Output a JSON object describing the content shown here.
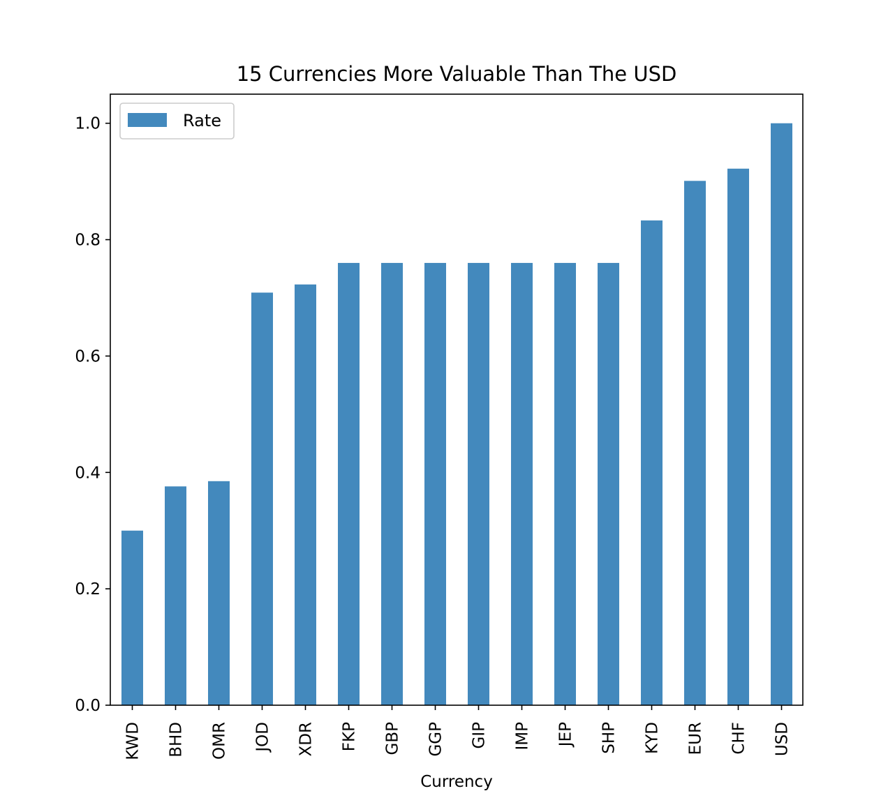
{
  "chart_data": {
    "type": "bar",
    "title": "15 Currencies More Valuable Than The USD",
    "xlabel": "Currency",
    "ylabel": "",
    "categories": [
      "KWD",
      "BHD",
      "OMR",
      "JOD",
      "XDR",
      "FKP",
      "GBP",
      "GGP",
      "GIP",
      "IMP",
      "JEP",
      "SHP",
      "KYD",
      "EUR",
      "CHF",
      "USD"
    ],
    "series": [
      {
        "name": "Rate",
        "values": [
          0.3,
          0.376,
          0.385,
          0.709,
          0.723,
          0.76,
          0.76,
          0.76,
          0.76,
          0.76,
          0.76,
          0.76,
          0.833,
          0.901,
          0.922,
          1.0
        ],
        "color": "#4389bd"
      }
    ],
    "ylim": [
      0,
      1.05
    ],
    "yticks": [
      "0.0",
      "0.2",
      "0.4",
      "0.6",
      "0.8",
      "1.0"
    ],
    "grid": false,
    "legend_position": "top-left"
  }
}
